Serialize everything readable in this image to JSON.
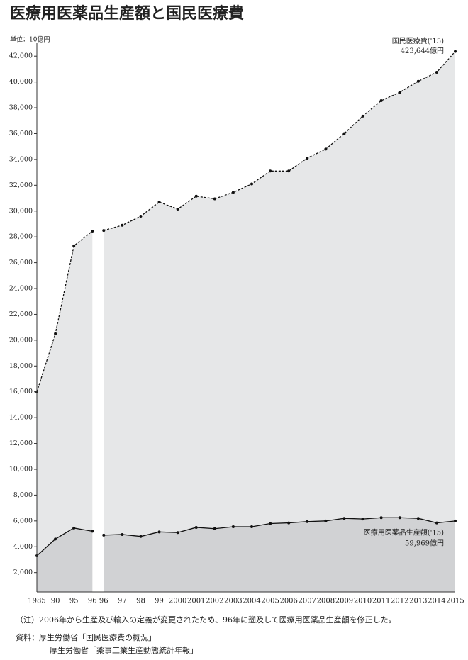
{
  "chart_data": {
    "type": "area",
    "title": "医療用医薬品生産額と国民医療費",
    "y_unit": "単位：10億円",
    "categories": [
      "1985",
      "90",
      "95",
      "96",
      null,
      "96",
      "97",
      "98",
      "99",
      "2000",
      "2001",
      "2002",
      "2003",
      "2004",
      "2005",
      "2006",
      "2007",
      "2008",
      "2009",
      "2010",
      "2011",
      "2012",
      "2013",
      "2014",
      "2015"
    ],
    "series": [
      {
        "name": "国民医療費('15)",
        "color": "#111111",
        "fill": "#e6e7e8",
        "dashed": true,
        "values": [
          16000,
          20500,
          27300,
          28450,
          null,
          28500,
          28900,
          29600,
          30700,
          30150,
          31150,
          30950,
          31450,
          32100,
          33100,
          33100,
          34100,
          34800,
          36000,
          37350,
          38550,
          39200,
          40050,
          40750,
          42364.4
        ],
        "value_labels": [
          null,
          null,
          null,
          null,
          null,
          null,
          null,
          null,
          null,
          null,
          null,
          null,
          null,
          null,
          null,
          null,
          null,
          null,
          null,
          null,
          null,
          null,
          null,
          null,
          "423,644億円"
        ]
      },
      {
        "name": "医療用医薬品生産額('15)",
        "color": "#111111",
        "fill": "#d1d2d4",
        "dashed": false,
        "values": [
          3300,
          4600,
          5450,
          5200,
          null,
          4900,
          4950,
          4800,
          5150,
          5100,
          5500,
          5400,
          5550,
          5550,
          5800,
          5850,
          5950,
          6000,
          6200,
          6150,
          6250,
          6250,
          6200,
          5850,
          5996.9
        ],
        "value_labels": [
          null,
          null,
          null,
          null,
          null,
          null,
          null,
          null,
          null,
          null,
          null,
          null,
          null,
          null,
          null,
          null,
          null,
          null,
          null,
          null,
          null,
          null,
          null,
          null,
          "59,969億円"
        ]
      }
    ],
    "ylim": [
      500,
      43000
    ],
    "yticks": [
      {
        "value": 2000,
        "label": "2,000"
      },
      {
        "value": 4000,
        "label": "4,000"
      },
      {
        "value": 6000,
        "label": "6,000"
      },
      {
        "value": 8000,
        "label": "8,000"
      },
      {
        "value": 10000,
        "label": "10,000"
      },
      {
        "value": 12000,
        "label": "12,000"
      },
      {
        "value": 14000,
        "label": "14,000"
      },
      {
        "value": 16000,
        "label": "16,000"
      },
      {
        "value": 18000,
        "label": "18,000"
      },
      {
        "value": 20000,
        "label": "20,000"
      },
      {
        "value": 22000,
        "label": "22,000"
      },
      {
        "value": 24000,
        "label": "24,000"
      },
      {
        "value": 26000,
        "label": "26,000"
      },
      {
        "value": 28000,
        "label": "28,000"
      },
      {
        "value": 30000,
        "label": "30,000"
      },
      {
        "value": 32000,
        "label": "32,000"
      },
      {
        "value": 34000,
        "label": "34,000"
      },
      {
        "value": 36000,
        "label": "36,000"
      },
      {
        "value": 38000,
        "label": "38,000"
      },
      {
        "value": 40000,
        "label": "40,000"
      },
      {
        "value": 42000,
        "label": "42,000"
      }
    ],
    "grid": false,
    "note": "（注）2006年から生産及び輸入の定義が変更されたため、96年に遡及して医療用医薬品生産額を修正した。",
    "source": [
      "資料：厚生労働省「国民医療費の概況」",
      "厚生労働省「薬事工業生産動態統計年報」"
    ]
  }
}
